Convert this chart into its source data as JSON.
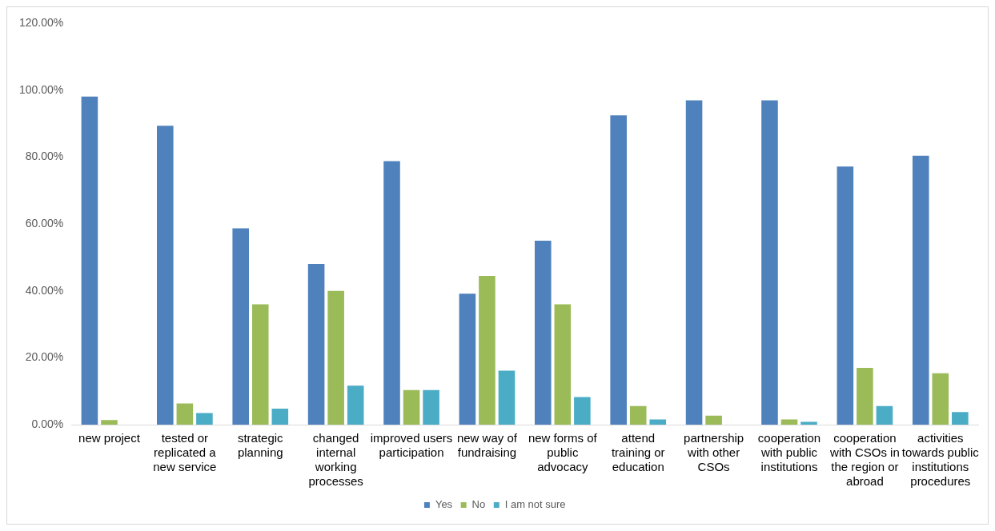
{
  "chart_data": {
    "type": "bar",
    "categories": [
      "new project",
      "tested or replicated a new service",
      "strategic planning",
      "changed internal working processes",
      "improved users participation",
      "new way of fundraising",
      "new forms of public advocacy",
      "attend training or education",
      "partnership with other CSOs",
      "cooperation with public institutions",
      "cooperation with CSOs in the region or abroad",
      "activities towards public institutions procedures"
    ],
    "series": [
      {
        "name": "Yes",
        "color": "#4f81bd",
        "values": [
          98.3,
          89.6,
          58.9,
          48.3,
          79.0,
          39.4,
          55.2,
          92.7,
          97.2,
          97.2,
          77.4,
          80.6
        ]
      },
      {
        "name": "No",
        "color": "#9bbb59",
        "values": [
          1.6,
          6.6,
          36.2,
          40.2,
          10.6,
          44.7,
          36.2,
          5.8,
          2.9,
          1.8,
          17.2,
          15.6
        ]
      },
      {
        "name": "I am not sure",
        "color": "#4bacc6",
        "values": [
          0,
          3.7,
          5.0,
          11.9,
          10.6,
          16.4,
          8.5,
          1.8,
          0,
          1.1,
          5.8,
          4.0
        ]
      }
    ],
    "ylim": [
      0,
      120
    ],
    "yticks": [
      {
        "value": 0,
        "label": "0.00%"
      },
      {
        "value": 20,
        "label": "20.00%"
      },
      {
        "value": 40,
        "label": "40.00%"
      },
      {
        "value": 60,
        "label": "60.00%"
      },
      {
        "value": 80,
        "label": "80.00%"
      },
      {
        "value": 100,
        "label": "100.00%"
      },
      {
        "value": 120,
        "label": "120.00%"
      }
    ],
    "grid": false,
    "legend": "bottom"
  }
}
